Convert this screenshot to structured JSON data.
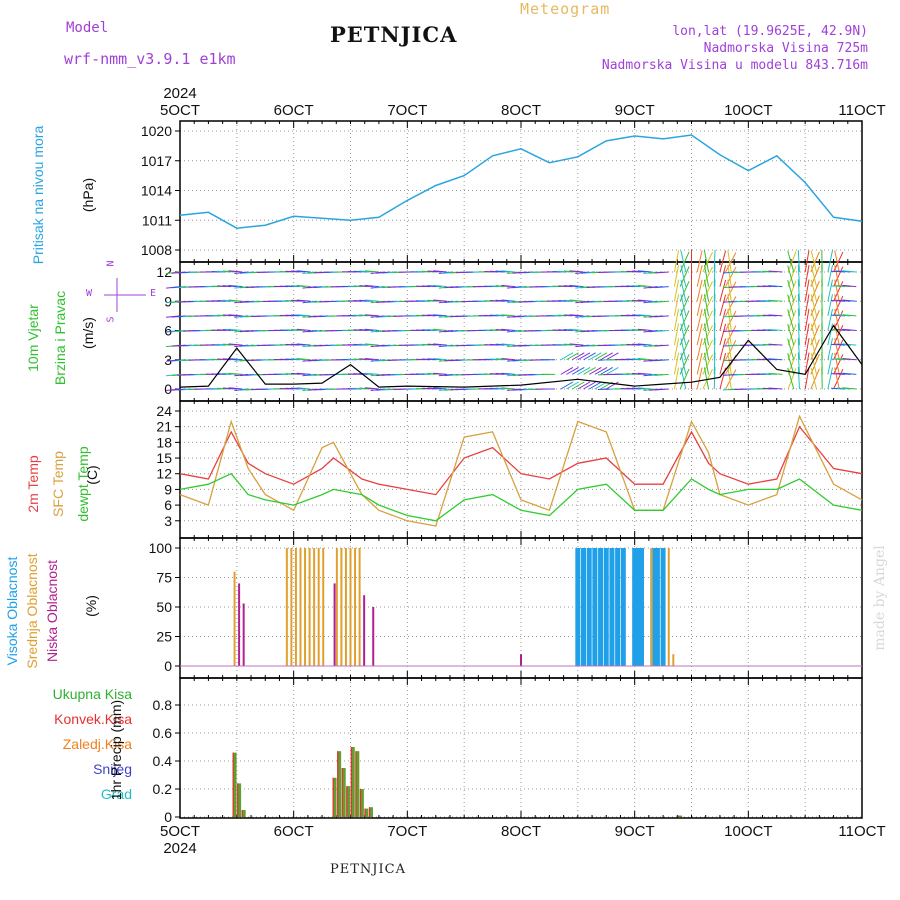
{
  "header": {
    "model_label": "Model",
    "model_name": "wrf-nmm_v3.9.1 e1km",
    "title": "PETNJICA",
    "meteogram": "Meteogram",
    "lonlat": "lon,lat (19.9625E, 42.9N)",
    "elevation": "Nadmorska Visina 725m",
    "model_elevation": "Nadmorska Visina u modelu 843.716m",
    "footer": "PETNJICA",
    "credit": "made by Angel"
  },
  "time_axis": {
    "year": "2024",
    "ticks": [
      "5OCT",
      "6OCT",
      "7OCT",
      "8OCT",
      "9OCT",
      "10OCT",
      "11OCT"
    ]
  },
  "panels": {
    "pressure": {
      "label1": "Pritisak na nivou mora",
      "unit": "(hPa)",
      "color": "#2aa5e0"
    },
    "wind": {
      "label1": "10m Vjetar",
      "label2": "Brzina i Pravac",
      "unit": "(m/s)",
      "compass_n": "N",
      "compass_w": "W",
      "compass_e": "E",
      "compass_s": "S"
    },
    "temp": {
      "label1": "2m Temp",
      "label2": "SFC Temp",
      "label3": "dewpt Temp",
      "unit": "(C)"
    },
    "cloud": {
      "label1": "Visoka Oblacnost",
      "label2": "Srednja Oblacnost",
      "label3": "Niska Oblacnost",
      "unit": "(%)"
    },
    "precip": {
      "l1": "Ukupna Kisa",
      "l2": "Konvek.Kisa",
      "l3": "Zaledj.Kisa",
      "l4": "Snijeg",
      "l5": "Grad",
      "unit": "1hr Precip (mm)"
    }
  },
  "colors": {
    "pressure": "#2aa5e0",
    "t2m": "#e84040",
    "sfc": "#d8a040",
    "dew": "#30cc30",
    "high": "#20a0e8",
    "mid": "#e0a030",
    "low": "#b02090",
    "total": "#60a030",
    "conv": "#e83030",
    "frz": "#f08020",
    "snow": "#4040d0",
    "hail": "#20c0c0",
    "grid": "#999999"
  },
  "chart_data": [
    {
      "type": "line",
      "name": "pressure",
      "x_days": [
        0,
        0.25,
        0.5,
        0.75,
        1,
        1.25,
        1.5,
        1.75,
        2,
        2.25,
        2.5,
        2.75,
        3,
        3.25,
        3.5,
        3.75,
        4,
        4.25,
        4.5,
        4.75,
        5,
        5.25,
        5.5,
        5.75,
        6
      ],
      "values": [
        1011.5,
        1011.8,
        1010.2,
        1010.5,
        1011.4,
        1011.2,
        1011.0,
        1011.3,
        1013.0,
        1014.5,
        1015.5,
        1017.5,
        1018.2,
        1016.8,
        1017.4,
        1019.0,
        1019.5,
        1019.2,
        1019.6,
        1017.6,
        1016.0,
        1017.5,
        1014.8,
        1011.3,
        1010.9
      ],
      "ylim": [
        1008,
        1020
      ],
      "yticks": [
        1008,
        1011,
        1014,
        1017,
        1020
      ]
    },
    {
      "type": "line",
      "name": "wind-speed",
      "x_days": [
        0,
        0.25,
        0.5,
        0.75,
        1,
        1.25,
        1.5,
        1.75,
        2,
        2.5,
        3,
        3.5,
        4,
        4.25,
        4.5,
        4.75,
        5,
        5.25,
        5.5,
        5.75,
        6
      ],
      "values": [
        0.2,
        0.3,
        4.2,
        0.5,
        0.5,
        0.6,
        2.5,
        0.2,
        0.3,
        0.2,
        0.4,
        1.0,
        0.3,
        0.5,
        0.7,
        1.2,
        5.0,
        2.0,
        1.5,
        6.5,
        2.5
      ],
      "ylim": [
        0,
        12
      ],
      "yticks": [
        0,
        3,
        6,
        9,
        12
      ]
    },
    {
      "type": "line",
      "series": [
        {
          "name": "2m Temp",
          "x_days": [
            0,
            0.25,
            0.45,
            0.6,
            0.75,
            1,
            1.25,
            1.35,
            1.6,
            1.75,
            2,
            2.25,
            2.5,
            2.75,
            3,
            3.25,
            3.5,
            3.75,
            4,
            4.25,
            4.5,
            4.65,
            4.75,
            5,
            5.25,
            5.45,
            5.75,
            6
          ],
          "values": [
            12,
            11,
            20,
            14,
            12,
            10,
            13,
            15,
            11,
            10,
            9,
            8,
            15,
            17,
            12,
            11,
            14,
            15,
            10,
            10,
            20,
            14,
            12,
            10,
            11,
            21,
            13,
            12
          ]
        },
        {
          "name": "SFC Temp",
          "x_days": [
            0,
            0.25,
            0.45,
            0.6,
            0.75,
            1,
            1.25,
            1.35,
            1.6,
            1.75,
            2,
            2.25,
            2.5,
            2.75,
            3,
            3.25,
            3.5,
            3.75,
            4,
            4.25,
            4.5,
            4.65,
            4.75,
            5,
            5.25,
            5.45,
            5.75,
            6
          ],
          "values": [
            8,
            6,
            22,
            13,
            8,
            5,
            17,
            18,
            8,
            5,
            3,
            2,
            19,
            20,
            7,
            5,
            22,
            20,
            5,
            5,
            22,
            16,
            8,
            6,
            8,
            23,
            10,
            7
          ]
        },
        {
          "name": "dewpt Temp",
          "x_days": [
            0,
            0.25,
            0.45,
            0.6,
            0.75,
            1,
            1.25,
            1.35,
            1.6,
            1.75,
            2,
            2.25,
            2.5,
            2.75,
            3,
            3.25,
            3.5,
            3.75,
            4,
            4.25,
            4.5,
            4.65,
            4.75,
            5,
            5.25,
            5.45,
            5.75,
            6
          ],
          "values": [
            9,
            10,
            12,
            8,
            7,
            6,
            8,
            9,
            8,
            6,
            4,
            3,
            7,
            8,
            5,
            4,
            9,
            10,
            5,
            5,
            11,
            9,
            8,
            9,
            9,
            11,
            6,
            5
          ]
        }
      ],
      "ylim": [
        2,
        24
      ],
      "yticks": [
        3,
        6,
        9,
        12,
        15,
        18,
        21,
        24
      ]
    },
    {
      "type": "bar",
      "name": "cloud-cover",
      "series": [
        {
          "name": "Visoka Oblacnost",
          "bars": [
            [
              3.5,
              100
            ],
            [
              3.55,
              100
            ],
            [
              3.6,
              100
            ],
            [
              3.65,
              100
            ],
            [
              3.7,
              100
            ],
            [
              3.75,
              100
            ],
            [
              3.8,
              100
            ],
            [
              3.85,
              100
            ],
            [
              3.9,
              100
            ],
            [
              4.0,
              100
            ],
            [
              4.03,
              100
            ],
            [
              4.06,
              100
            ],
            [
              4.16,
              100
            ],
            [
              4.2,
              100
            ],
            [
              4.25,
              100
            ]
          ]
        },
        {
          "name": "Srednja Oblacnost",
          "bars": [
            [
              0.48,
              80
            ],
            [
              0.94,
              100
            ],
            [
              0.98,
              100
            ],
            [
              1.02,
              100
            ],
            [
              1.06,
              100
            ],
            [
              1.1,
              100
            ],
            [
              1.14,
              100
            ],
            [
              1.18,
              100
            ],
            [
              1.22,
              100
            ],
            [
              1.26,
              100
            ],
            [
              1.38,
              100
            ],
            [
              1.42,
              100
            ],
            [
              1.46,
              100
            ],
            [
              1.5,
              100
            ],
            [
              1.54,
              100
            ],
            [
              1.58,
              100
            ],
            [
              4.15,
              100
            ],
            [
              4.3,
              100
            ],
            [
              4.34,
              10
            ]
          ]
        },
        {
          "name": "Niska Oblacnost",
          "bars": [
            [
              0.52,
              70
            ],
            [
              0.56,
              53
            ],
            [
              1.36,
              70
            ],
            [
              1.62,
              60
            ],
            [
              1.7,
              50
            ],
            [
              3.0,
              10
            ]
          ]
        }
      ],
      "ylim": [
        0,
        100
      ],
      "yticks": [
        0,
        25,
        50,
        75,
        100
      ]
    },
    {
      "type": "bar",
      "name": "precipitation",
      "series": [
        {
          "name": "Ukupna Kisa",
          "bars": [
            [
              0.48,
              0.46
            ],
            [
              0.52,
              0.24
            ],
            [
              0.56,
              0.05
            ],
            [
              1.36,
              0.28
            ],
            [
              1.4,
              0.47
            ],
            [
              1.44,
              0.35
            ],
            [
              1.48,
              0.22
            ],
            [
              1.52,
              0.5
            ],
            [
              1.56,
              0.47
            ],
            [
              1.6,
              0.2
            ],
            [
              1.64,
              0.06
            ],
            [
              1.68,
              0.07
            ],
            [
              4.4,
              0.01
            ]
          ]
        }
      ],
      "ylim": [
        0,
        0.95
      ],
      "yticks": [
        0,
        0.2,
        0.4,
        0.6,
        0.8
      ]
    }
  ]
}
